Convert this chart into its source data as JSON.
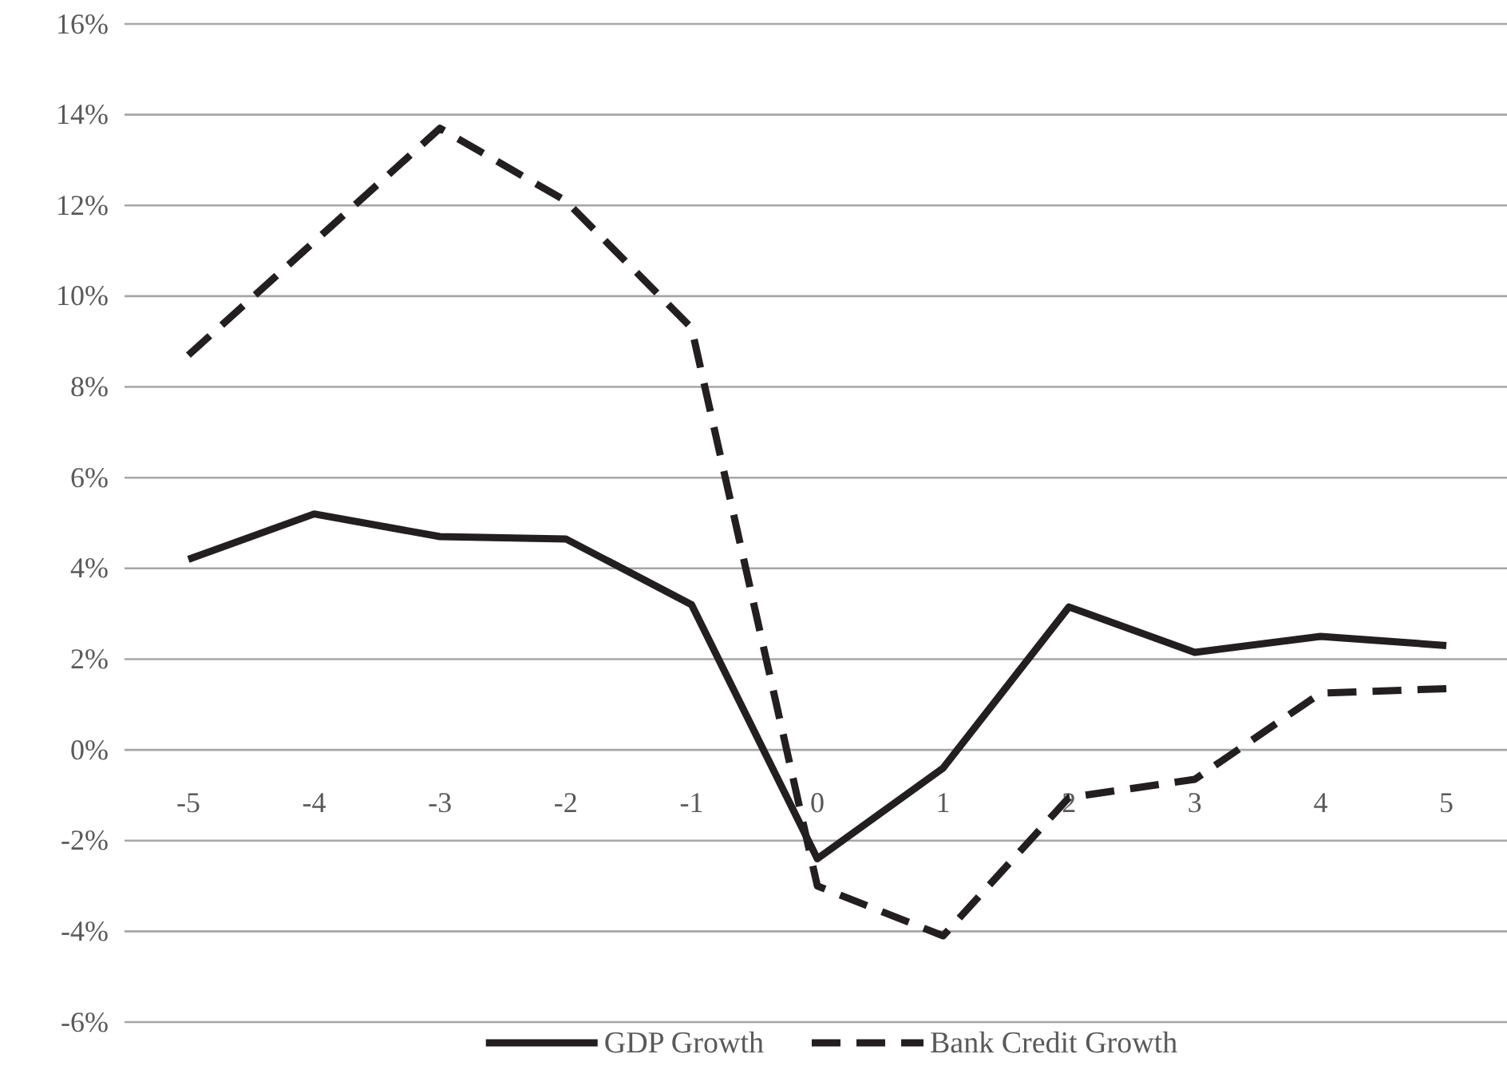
{
  "chart_data": {
    "type": "line",
    "categories": [
      "-5",
      "-4",
      "-3",
      "-2",
      "-1",
      "0",
      "1",
      "2",
      "3",
      "4",
      "5"
    ],
    "series": [
      {
        "name": "GDP Growth",
        "color": "#231f20",
        "line_style": "solid",
        "values": [
          4.2,
          5.2,
          4.7,
          4.65,
          3.2,
          -2.4,
          -0.4,
          3.15,
          2.15,
          2.5,
          2.3
        ]
      },
      {
        "name": "Bank Credit Growth",
        "color": "#231f20",
        "line_style": "dashed",
        "values": [
          8.7,
          11.2,
          13.7,
          12.1,
          9.3,
          -3.0,
          -4.1,
          -1.05,
          -0.65,
          1.25,
          1.35
        ]
      }
    ],
    "ylim": [
      -6,
      16
    ],
    "yticks": [
      {
        "value": -6,
        "label": "-6%"
      },
      {
        "value": -4,
        "label": "-4%"
      },
      {
        "value": -2,
        "label": "-2%"
      },
      {
        "value": 0,
        "label": "0%"
      },
      {
        "value": 2,
        "label": "2%"
      },
      {
        "value": 4,
        "label": "4%"
      },
      {
        "value": 6,
        "label": "6%"
      },
      {
        "value": 8,
        "label": "8%"
      },
      {
        "value": 10,
        "label": "10%"
      },
      {
        "value": 12,
        "label": "12%"
      },
      {
        "value": 14,
        "label": "14%"
      },
      {
        "value": 16,
        "label": "16%"
      }
    ],
    "grid": "y",
    "legend": "bottom",
    "marker": "none"
  }
}
